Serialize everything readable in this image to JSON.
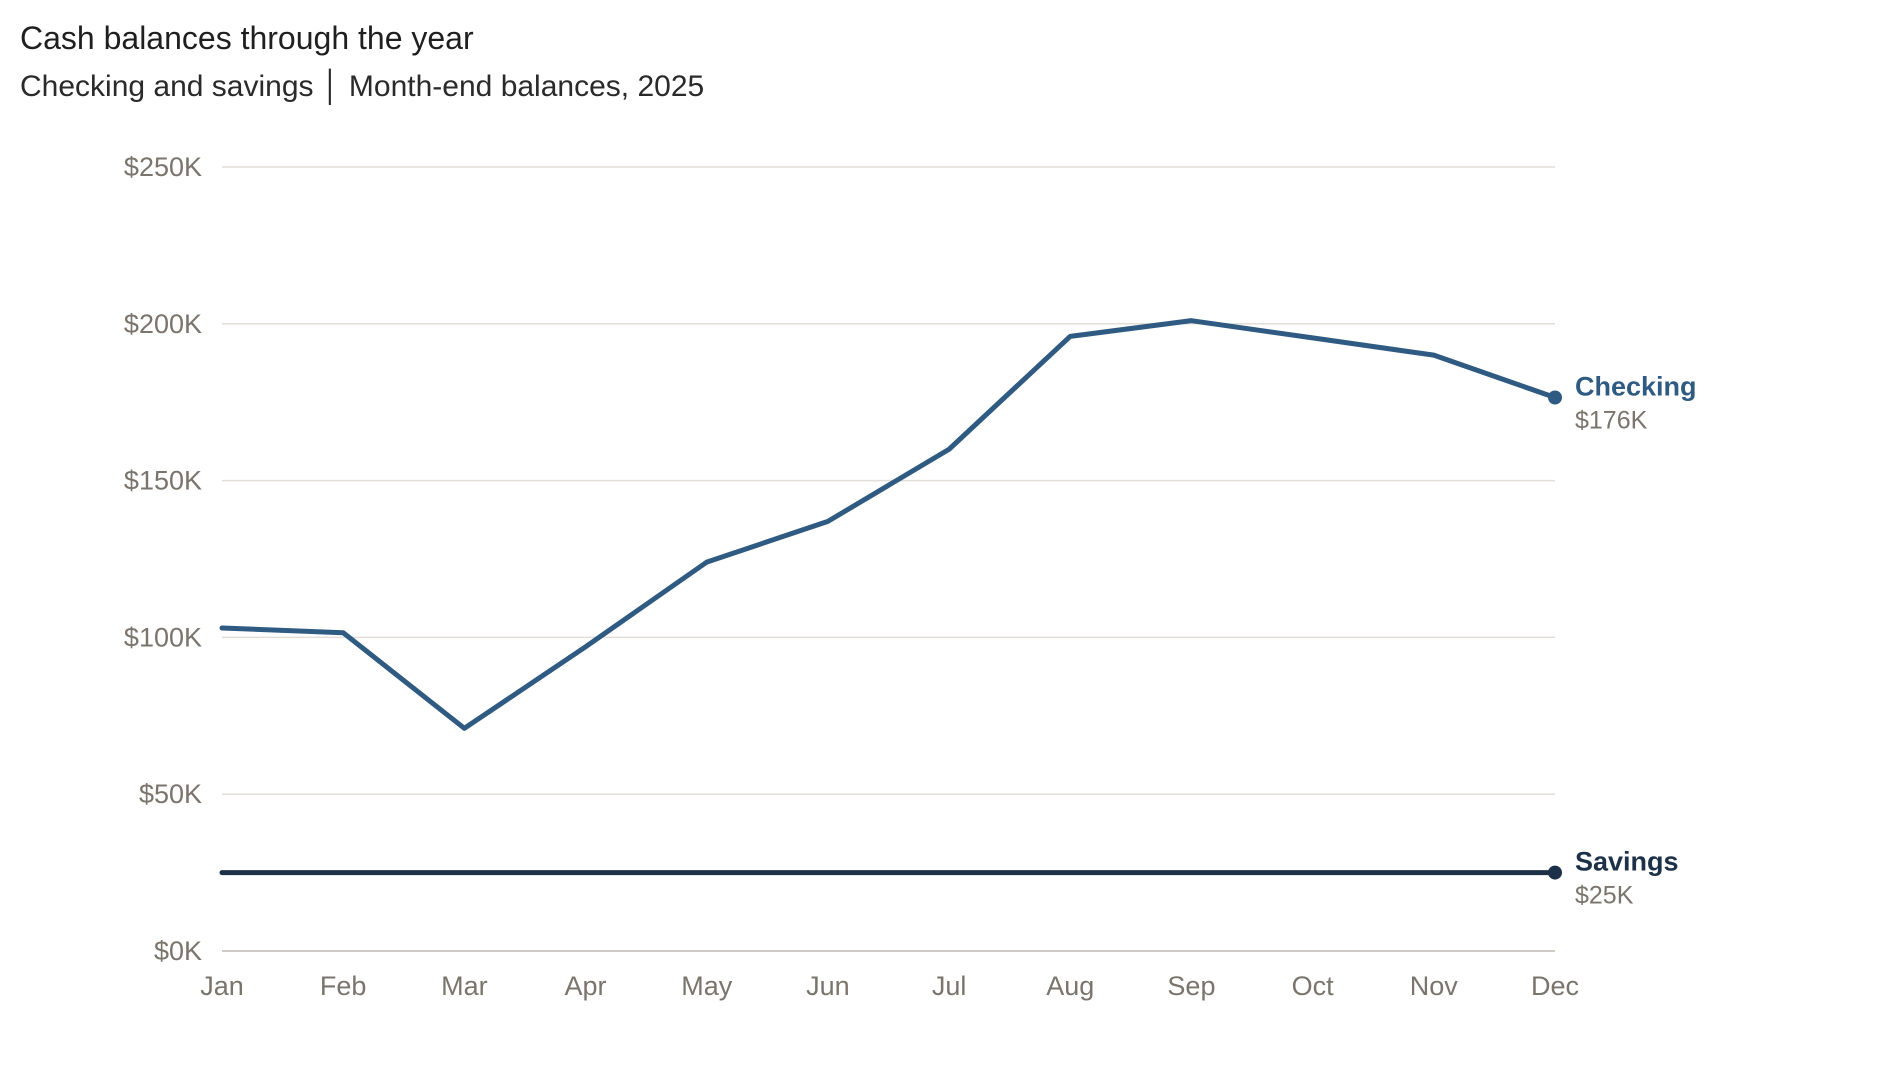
{
  "chart_data": {
    "type": "line",
    "title": "Cash balances through the year",
    "subtitle": "Checking and savings │ Month‑end balances, 2025",
    "categories": [
      "Jan",
      "Feb",
      "Mar",
      "Apr",
      "May",
      "Jun",
      "Jul",
      "Aug",
      "Sep",
      "Oct",
      "Nov",
      "Dec"
    ],
    "ylim": [
      0,
      250000
    ],
    "yticks": [
      0,
      50000,
      100000,
      150000,
      200000,
      250000
    ],
    "ytick_labels": [
      "$0K",
      "$50K",
      "$100K",
      "$150K",
      "$200K",
      "$250K"
    ],
    "grid": true,
    "legend": "direct labels at line ends (right)",
    "series": [
      {
        "name": "Checking",
        "end_label": "$176K",
        "color": "#2f5a82",
        "values": [
          103000,
          101500,
          71000,
          97000,
          124000,
          137000,
          160000,
          196000,
          201000,
          195500,
          190000,
          176500
        ]
      },
      {
        "name": "Savings",
        "end_label": "$25K",
        "color": "#1c3048",
        "values": [
          25000,
          25000,
          25000,
          25000,
          25000,
          25000,
          25000,
          25000,
          25000,
          25000,
          25000,
          25000
        ]
      }
    ]
  }
}
